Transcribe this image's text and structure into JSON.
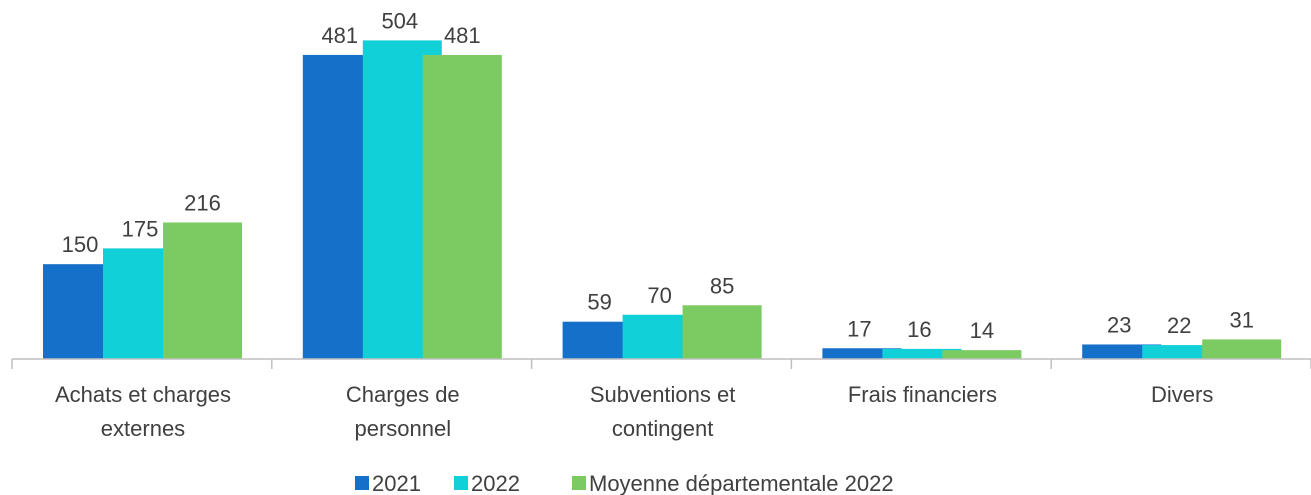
{
  "chart_data": {
    "type": "bar",
    "categories": [
      "Achats et charges\nexternes",
      "Charges de\npersonnel",
      "Subventions et\ncontingent",
      "Frais financiers",
      "Divers"
    ],
    "series": [
      {
        "name": "2021",
        "color": "#1570c9",
        "values": [
          150,
          481,
          59,
          17,
          23
        ]
      },
      {
        "name": "2022",
        "color": "#12d0d8",
        "values": [
          175,
          504,
          70,
          16,
          22
        ]
      },
      {
        "name": "Moyenne départementale 2022",
        "color": "#7ccb62",
        "values": [
          216,
          481,
          85,
          14,
          31
        ]
      }
    ],
    "ylim": [
      0,
      560
    ],
    "legend": "bottom"
  }
}
